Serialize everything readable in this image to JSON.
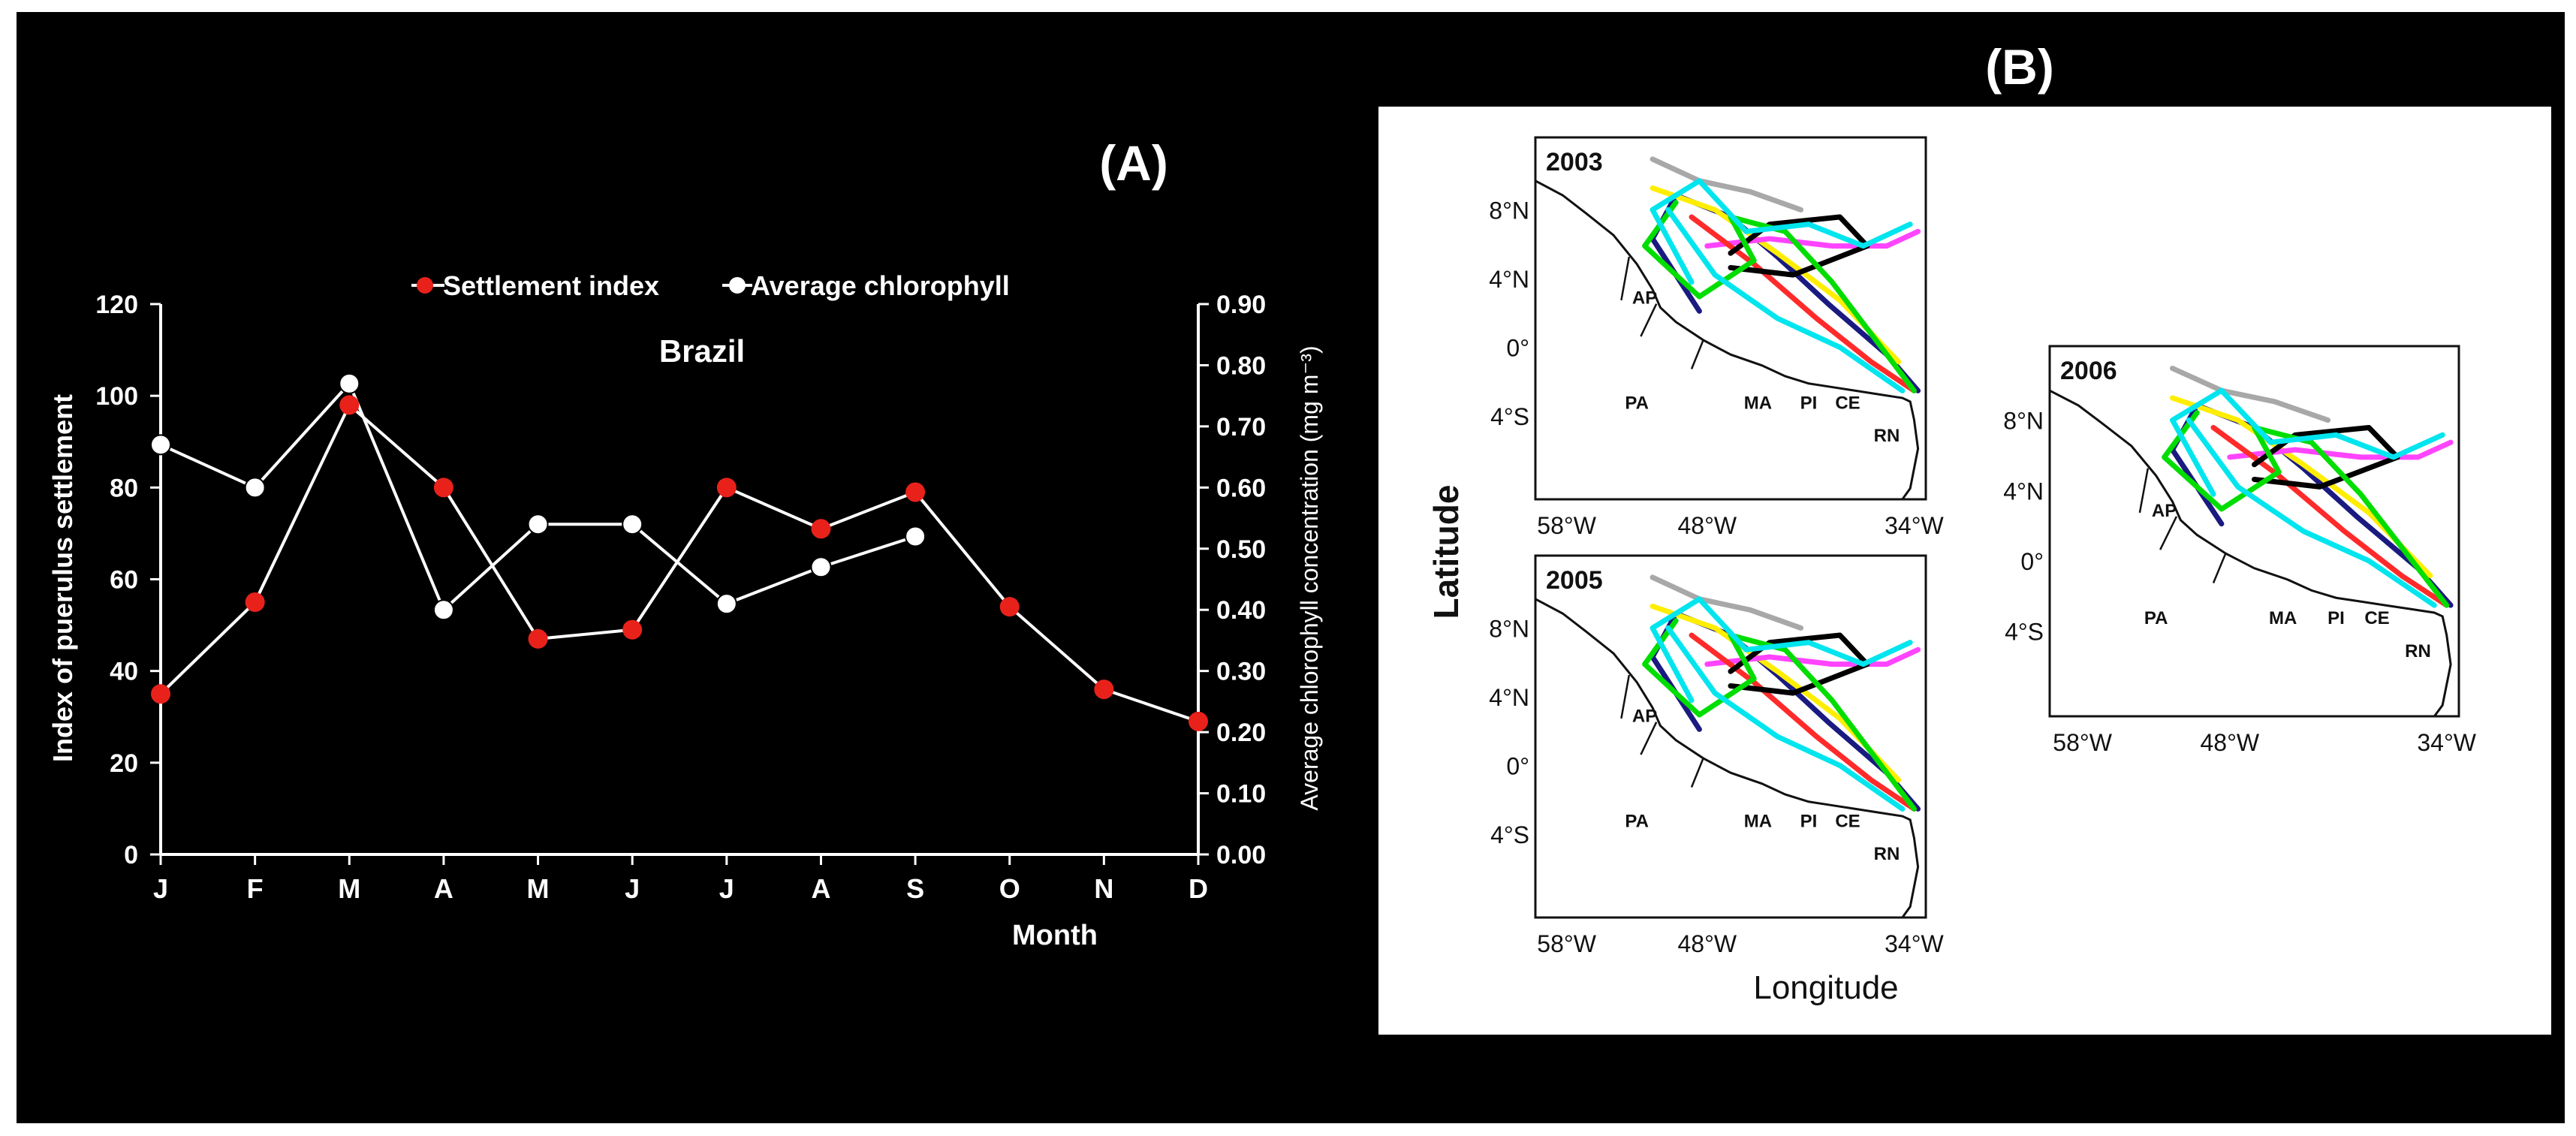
{
  "panel_a": {
    "label": "(A)",
    "legend": {
      "settlement": "Settlement index",
      "chlorophyll": "Average chlorophyll"
    },
    "location": "Brazil",
    "xlabel": "Month",
    "ylabel_left": "Index of puerulus settlement",
    "ylabel_right": "Average chlorophyll concentration (mg m⁻³)",
    "colors": {
      "settlement": "#e8221b",
      "chlorophyll": "#ffffff",
      "background": "#000000"
    }
  },
  "panel_b": {
    "label": "(B)",
    "xlabel": "Longitude",
    "ylabel": "Latitude",
    "maps": [
      {
        "year": "2003"
      },
      {
        "year": "2005"
      },
      {
        "year": "2006"
      }
    ],
    "lon_ticks": [
      "58°W",
      "48°W",
      "34°W"
    ],
    "lat_ticks": [
      "8°N",
      "4°N",
      "0°",
      "4°S"
    ],
    "region_labels": [
      "AP",
      "PA",
      "MA",
      "PI",
      "CE",
      "RN"
    ],
    "track_colors": [
      "#00e5ee",
      "#00dd00",
      "#ff2a2a",
      "#ffee00",
      "#1a1a80",
      "#ff44ff",
      "#a8a8a8",
      "#000000"
    ]
  },
  "chart_data": [
    {
      "type": "line",
      "title": "Brazil",
      "xlabel": "Month",
      "ylabel": "Index of puerulus settlement",
      "categories": [
        "J",
        "F",
        "M",
        "A",
        "M",
        "J",
        "J",
        "A",
        "S",
        "O",
        "N",
        "D"
      ],
      "series": [
        {
          "name": "Settlement index",
          "axis": "left",
          "values": [
            35,
            55,
            98,
            80,
            47,
            49,
            80,
            71,
            79,
            54,
            36,
            29
          ]
        },
        {
          "name": "Average chlorophyll",
          "axis": "right",
          "values": [
            0.67,
            0.6,
            0.77,
            0.4,
            0.54,
            0.54,
            0.41,
            0.47,
            0.52,
            null,
            null,
            null
          ]
        }
      ],
      "ylim_left": [
        0,
        120
      ],
      "yticks_left": [
        "0",
        "20",
        "40",
        "60",
        "80",
        "100",
        "120"
      ],
      "ylim_right": [
        0,
        0.9
      ],
      "yticks_right": [
        "0.00",
        "0.10",
        "0.20",
        "0.30",
        "0.40",
        "0.50",
        "0.60",
        "0.70",
        "0.80",
        "0.90"
      ]
    }
  ]
}
